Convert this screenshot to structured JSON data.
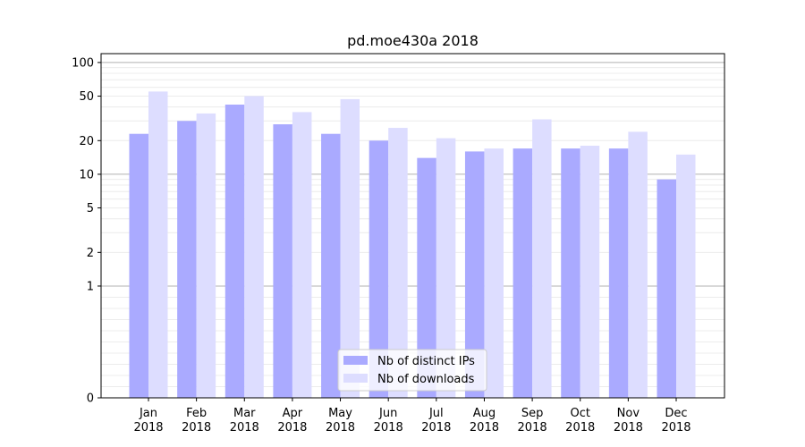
{
  "chart_data": {
    "type": "bar",
    "title": "pd.moe430a 2018",
    "xlabel": "",
    "ylabel": "",
    "y_scale": "symlog",
    "ylim": [
      0,
      120
    ],
    "y_ticks": [
      0,
      1,
      2,
      5,
      10,
      20,
      50,
      100
    ],
    "grid": "horizontal",
    "legend_position": "lower-center",
    "categories": [
      {
        "month": "Jan",
        "year": "2018"
      },
      {
        "month": "Feb",
        "year": "2018"
      },
      {
        "month": "Mar",
        "year": "2018"
      },
      {
        "month": "Apr",
        "year": "2018"
      },
      {
        "month": "May",
        "year": "2018"
      },
      {
        "month": "Jun",
        "year": "2018"
      },
      {
        "month": "Jul",
        "year": "2018"
      },
      {
        "month": "Aug",
        "year": "2018"
      },
      {
        "month": "Sep",
        "year": "2018"
      },
      {
        "month": "Oct",
        "year": "2018"
      },
      {
        "month": "Nov",
        "year": "2018"
      },
      {
        "month": "Dec",
        "year": "2018"
      }
    ],
    "series": [
      {
        "name": "Nb of distinct IPs",
        "color": "#aaaaff",
        "values": [
          23,
          30,
          42,
          28,
          23,
          20,
          14,
          16,
          17,
          17,
          17,
          9
        ]
      },
      {
        "name": "Nb of downloads",
        "color": "#ddddff",
        "values": [
          55,
          35,
          50,
          36,
          47,
          26,
          21,
          17,
          31,
          18,
          24,
          15
        ]
      }
    ]
  }
}
